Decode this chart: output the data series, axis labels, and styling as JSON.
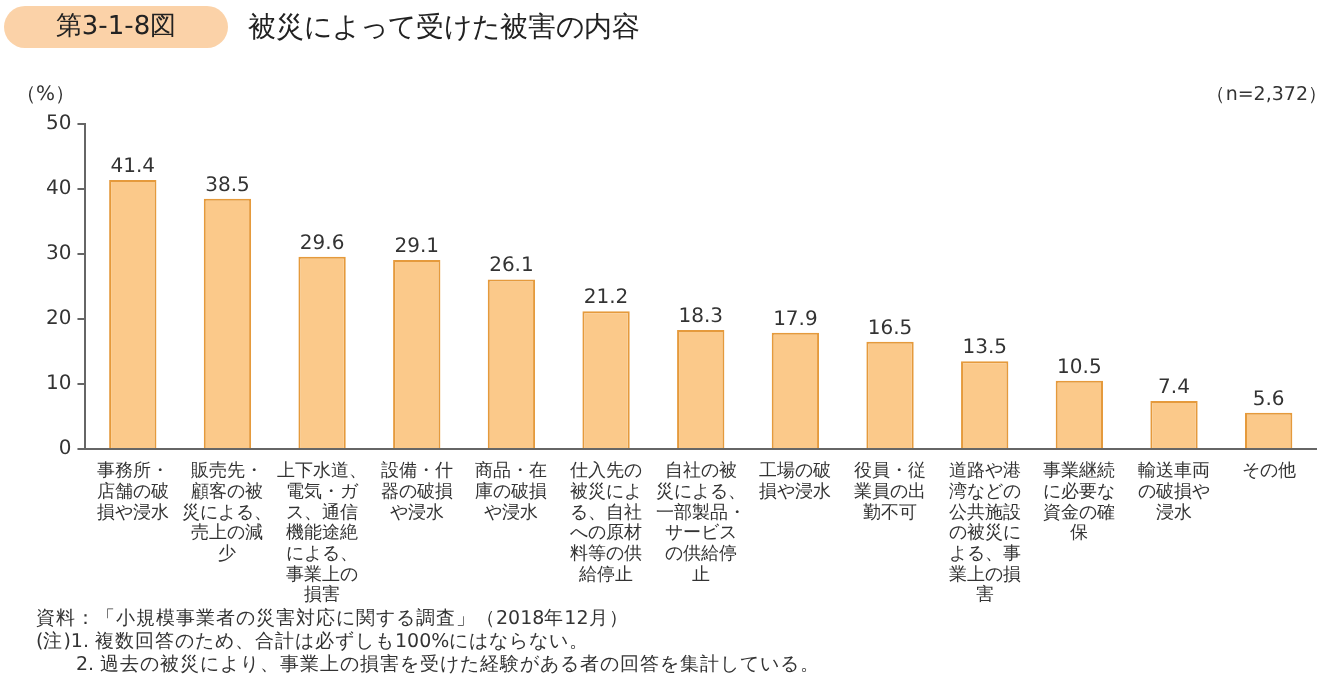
{
  "chart_data": {
    "type": "bar",
    "title": "被災によって受けた被害の内容",
    "subtitle": "第3-1-8図",
    "ylabel": "（%）",
    "categories": [
      "事務所・店舗の破損や浸水",
      "販売先・顧客の被災による、売上の減少",
      "上下水道、電気・ガス、通信機能途絶による、事業上の損害",
      "設備・什器の破損や浸水",
      "商品・在庫の破損や浸水",
      "仕入先の被災による、自社への原材料等の供給停止",
      "自社の被災による、一部製品・サービスの供給停止",
      "工場の破損や浸水",
      "役員・従業員の出勤不可",
      "道路や港湾などの公共施設の被災による、事業上の損害",
      "事業継続に必要な資金の確保",
      "輸送車両の破損や浸水",
      "その他"
    ],
    "values": [
      41.4,
      38.5,
      29.6,
      29.1,
      26.1,
      21.2,
      18.3,
      17.9,
      16.5,
      13.5,
      10.5,
      7.4,
      5.6
    ],
    "color": "#fbc98a",
    "ylim": [
      0,
      50
    ],
    "yticks": [
      0,
      10,
      20,
      30,
      40,
      50
    ],
    "grid": false,
    "data_labels": true,
    "annotations": [
      "（n=2,372）",
      "資料：「小規模事業者の災害対応に関する調査」（2018年12月）",
      "(注)1. 複数回答のため、合計は必ずしも100%にはならない。",
      "　　2. 過去の被災により、事業上の損害を受けた経験がある者の回答を集計している。"
    ]
  }
}
